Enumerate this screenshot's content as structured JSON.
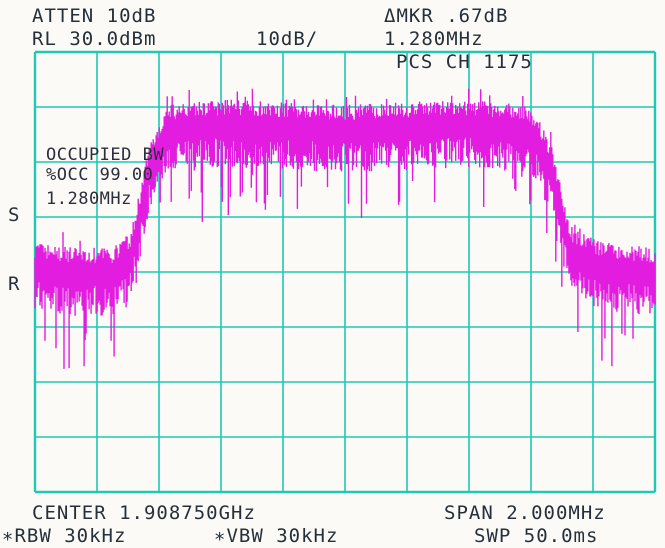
{
  "header": {
    "atten": "ATTEN 10dB",
    "ref_level": "RL 30.0dBm",
    "scale": "10dB/",
    "marker_delta": "ΔMKR .67dB",
    "marker_freq": "1.280MHz",
    "channel": "PCS CH 1175"
  },
  "side_markers": {
    "s": "S",
    "r": "R"
  },
  "occupied_bw": {
    "title": "OCCUPIED BW",
    "pct": "%OCC 99.00",
    "bw": "1.280MHz"
  },
  "footer": {
    "center": "CENTER 1.908750GHz",
    "span": "SPAN 2.000MHz",
    "rbw": "∗RBW 30kHz",
    "vbw": "∗VBW 30kHz",
    "sweep": "SWP 50.0ms"
  },
  "colors": {
    "grid": "#1ec9b4",
    "trace": "#e21de0",
    "text": "#25303a",
    "background": "#fbfaf7"
  },
  "chart_data": {
    "type": "line",
    "x_divisions": 10,
    "y_divisions": 8,
    "xlim": [
      1.90775,
      1.90975
    ],
    "ylim": [
      -50,
      30
    ],
    "x": [
      1.90775,
      1.907875,
      1.908,
      1.90806,
      1.90812,
      1.908175,
      1.908375,
      1.90875,
      1.909125,
      1.90933,
      1.90937,
      1.90942,
      1.909475,
      1.90958,
      1.90975
    ],
    "values": [
      -9,
      -10,
      -10,
      -7,
      9,
      16,
      17,
      16,
      17,
      16,
      14,
      8,
      -6,
      -9,
      -10
    ],
    "series": [
      {
        "name": "",
        "values": [
          -9,
          -10,
          -10,
          -7,
          9,
          16,
          17,
          16,
          17,
          16,
          14,
          8,
          -6,
          -9,
          -10
        ]
      }
    ]
  }
}
